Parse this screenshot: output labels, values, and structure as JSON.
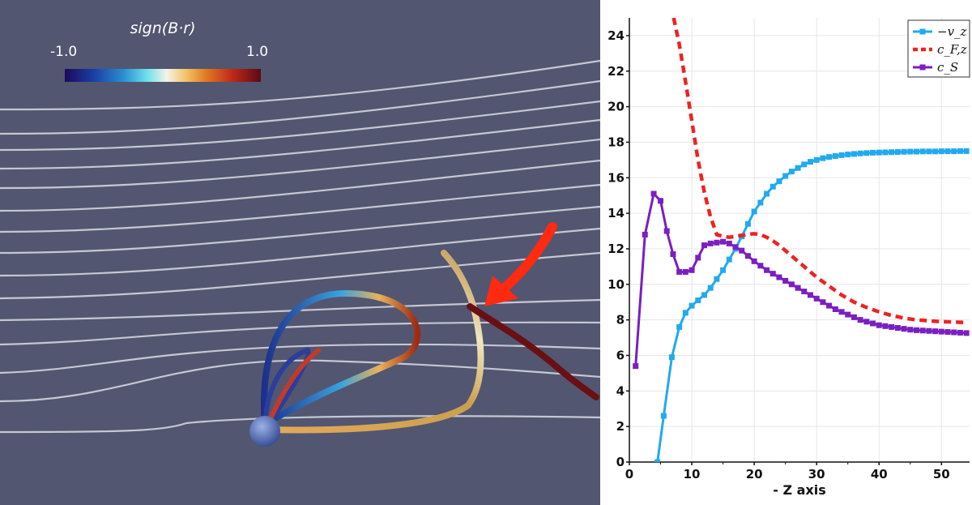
{
  "visualization": {
    "colorbar": {
      "title": "sign(B·r)",
      "min_label": "-1.0",
      "max_label": "1.0"
    }
  },
  "chart_data": {
    "type": "line",
    "title": "",
    "xlabel": "- Z axis",
    "ylabel": "",
    "xlim": [
      0,
      54.5
    ],
    "ylim": [
      0,
      25
    ],
    "xticks": [
      0,
      10,
      20,
      30,
      40,
      50
    ],
    "yticks": [
      0,
      2,
      4,
      6,
      8,
      10,
      12,
      14,
      16,
      18,
      20,
      22,
      24
    ],
    "grid": true,
    "legend_position": "top-right",
    "series": [
      {
        "name": "−v_z",
        "color": "#22aaee",
        "style": "solid-square-markers",
        "x": [
          4.5,
          5.5,
          6.8,
          8,
          9,
          10,
          11,
          12,
          13,
          14,
          15,
          16,
          17,
          18,
          19,
          20,
          21,
          22,
          23,
          24,
          25,
          26,
          27,
          28,
          29,
          30,
          31,
          32,
          33,
          34,
          35,
          36,
          37,
          38,
          39,
          40,
          41,
          42,
          43,
          44,
          45,
          46,
          47,
          48,
          49,
          50,
          51,
          52,
          53,
          54
        ],
        "y": [
          0,
          2.6,
          5.9,
          7.6,
          8.4,
          8.8,
          9.1,
          9.4,
          9.8,
          10.3,
          10.8,
          11.4,
          12.0,
          12.7,
          13.4,
          14.1,
          14.6,
          15.1,
          15.5,
          15.8,
          16.1,
          16.35,
          16.55,
          16.75,
          16.9,
          17.0,
          17.1,
          17.17,
          17.22,
          17.27,
          17.31,
          17.34,
          17.37,
          17.39,
          17.41,
          17.42,
          17.43,
          17.44,
          17.45,
          17.46,
          17.47,
          17.47,
          17.48,
          17.48,
          17.48,
          17.49,
          17.49,
          17.49,
          17.5,
          17.5
        ]
      },
      {
        "name": "c_F,z",
        "color": "#ee2222",
        "style": "dashed",
        "x": [
          7.1,
          8,
          9,
          10,
          11,
          12,
          13,
          14,
          15,
          16,
          17,
          18,
          19,
          20,
          21,
          22,
          23,
          24,
          25,
          26,
          27,
          28,
          29,
          30,
          32,
          34,
          36,
          38,
          40,
          42,
          44,
          46,
          48,
          50,
          52,
          54
        ],
        "y": [
          25,
          23.5,
          21.4,
          19.2,
          17.0,
          15.2,
          13.8,
          12.8,
          12.7,
          12.65,
          12.7,
          12.75,
          12.82,
          12.85,
          12.8,
          12.65,
          12.45,
          12.2,
          11.9,
          11.6,
          11.3,
          11.0,
          10.7,
          10.4,
          9.9,
          9.4,
          9.0,
          8.7,
          8.45,
          8.25,
          8.1,
          8.0,
          7.95,
          7.9,
          7.88,
          7.85
        ]
      },
      {
        "name": "c_S",
        "color": "#7a1fc1",
        "style": "solid-square-markers",
        "x": [
          1,
          2.5,
          3.9,
          5,
          6,
          7,
          8,
          9,
          10,
          11,
          12,
          13,
          14,
          15,
          16,
          17,
          18,
          19,
          20,
          21,
          22,
          23,
          24,
          25,
          26,
          27,
          28,
          29,
          30,
          31,
          32,
          33,
          34,
          35,
          36,
          37,
          38,
          39,
          40,
          41,
          42,
          43,
          44,
          45,
          46,
          47,
          48,
          49,
          50,
          51,
          52,
          53,
          54
        ],
        "y": [
          5.4,
          12.8,
          15.1,
          14.7,
          13.0,
          11.7,
          10.7,
          10.7,
          10.8,
          11.5,
          12.2,
          12.3,
          12.35,
          12.4,
          12.3,
          12.1,
          11.9,
          11.6,
          11.3,
          11.05,
          10.8,
          10.6,
          10.4,
          10.2,
          10.0,
          9.8,
          9.6,
          9.4,
          9.2,
          9.0,
          8.8,
          8.6,
          8.45,
          8.3,
          8.15,
          8.0,
          7.9,
          7.8,
          7.7,
          7.65,
          7.6,
          7.55,
          7.5,
          7.45,
          7.42,
          7.4,
          7.38,
          7.36,
          7.34,
          7.32,
          7.3,
          7.28,
          7.26
        ]
      }
    ]
  }
}
